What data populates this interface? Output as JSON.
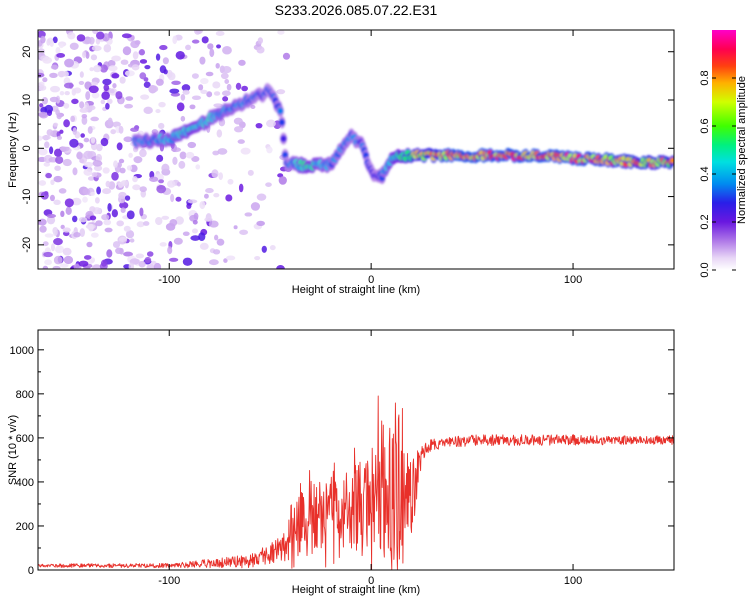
{
  "title": "S233.2026.085.07.22.E31",
  "chart_data": [
    {
      "type": "heatmap",
      "xlabel": "Height of straight line (km)",
      "ylabel": "Frequency (Hz)",
      "xlim": [
        -165,
        150
      ],
      "ylim": [
        -25,
        24.5
      ],
      "xticks": [
        -100,
        0,
        100
      ],
      "yticks": [
        -20,
        -10,
        0,
        10,
        20
      ],
      "colorbar": {
        "label": "Normalized spectral amplitude",
        "range": [
          0,
          1
        ],
        "ticks": [
          0.0,
          0.2,
          0.4,
          0.6,
          0.8
        ],
        "tick_labels": [
          "0.0",
          "0.2",
          "0.4",
          "0.6",
          "0.8"
        ]
      },
      "ridge": {
        "x": [
          -117,
          -110,
          -100,
          -90,
          -80,
          -70,
          -60,
          -50,
          -45,
          -42,
          -35,
          -30,
          -20,
          -10,
          -5,
          0,
          5,
          10,
          15,
          20,
          40,
          60,
          80,
          100,
          120,
          140,
          150
        ],
        "frequency": [
          1.5,
          1.5,
          2.0,
          3.5,
          6.0,
          8.5,
          10.0,
          12.0,
          8.0,
          -3.0,
          -3.5,
          -3.5,
          -3.5,
          2.5,
          1.0,
          -5.0,
          -6.0,
          -2.0,
          -1.5,
          -1.5,
          -1.5,
          -1.5,
          -1.5,
          -2.0,
          -2.5,
          -3.0,
          -3.0
        ],
        "amplitude": [
          0.35,
          0.4,
          0.45,
          0.5,
          0.45,
          0.4,
          0.35,
          0.3,
          0.35,
          0.3,
          0.5,
          0.5,
          0.4,
          0.35,
          0.35,
          0.3,
          0.35,
          0.5,
          0.6,
          0.7,
          0.9,
          0.9,
          0.9,
          0.9,
          0.85,
          0.8,
          0.8
        ]
      }
    },
    {
      "type": "line",
      "xlabel": "Height of straight line (km)",
      "ylabel": "SNR (10 * v/v)",
      "xlim": [
        -165,
        150
      ],
      "ylim": [
        0,
        1090
      ],
      "xticks": [
        -100,
        0,
        100
      ],
      "yticks": [
        0,
        200,
        400,
        600,
        800,
        1000
      ],
      "series": [
        {
          "name": "SNR",
          "color": "#e8302a",
          "envelope_x": [
            -165,
            -100,
            -80,
            -60,
            -45,
            -40,
            -30,
            -20,
            -10,
            0,
            5,
            10,
            15,
            20,
            25,
            30,
            50,
            70,
            100,
            120,
            150
          ],
          "envelope_mean": [
            20,
            20,
            30,
            40,
            90,
            170,
            250,
            250,
            280,
            330,
            380,
            350,
            300,
            300,
            530,
            570,
            590,
            590,
            590,
            590,
            590
          ],
          "envelope_spread": [
            8,
            10,
            20,
            30,
            60,
            120,
            160,
            160,
            170,
            230,
            320,
            330,
            300,
            200,
            40,
            25,
            25,
            25,
            25,
            20,
            20
          ]
        }
      ]
    }
  ]
}
